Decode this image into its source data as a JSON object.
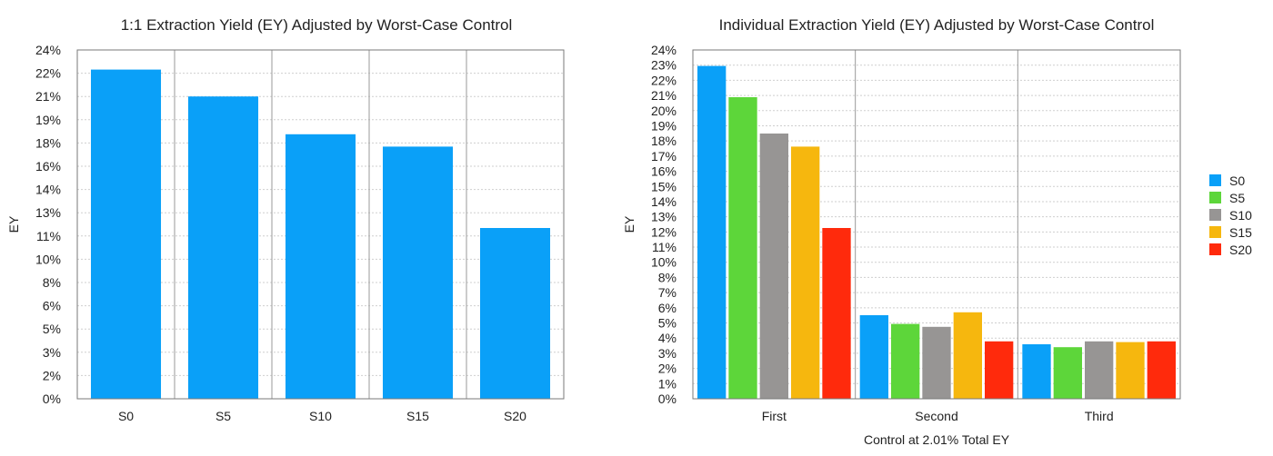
{
  "chart_data": [
    {
      "type": "bar",
      "title": "1:1 Extraction Yield (EY) Adjusted by Worst-Case Control",
      "xlabel": "",
      "ylabel": "EY",
      "ylim": [
        0,
        0.24
      ],
      "yticks": [
        "0%",
        "2%",
        "3%",
        "5%",
        "6%",
        "8%",
        "10%",
        "11%",
        "13%",
        "14%",
        "16%",
        "18%",
        "19%",
        "21%",
        "22%",
        "24%"
      ],
      "categories": [
        "S0",
        "S5",
        "S10",
        "S15",
        "S20"
      ],
      "color": "#0aa0f8",
      "values": [
        0.2265,
        0.208,
        0.182,
        0.1735,
        0.1175
      ],
      "grid": true
    },
    {
      "type": "bar",
      "title": "Individual Extraction Yield (EY) Adjusted by Worst-Case Control",
      "xlabel": "Control at 2.01% Total EY",
      "ylabel": "EY",
      "ylim": [
        0,
        0.24
      ],
      "yticks": [
        "0%",
        "1%",
        "2%",
        "3%",
        "4%",
        "5%",
        "6%",
        "7%",
        "8%",
        "10%",
        "11%",
        "12%",
        "13%",
        "14%",
        "15%",
        "16%",
        "17%",
        "18%",
        "19%",
        "20%",
        "21%",
        "22%",
        "23%",
        "24%"
      ],
      "categories": [
        "First",
        "Second",
        "Third"
      ],
      "series": [
        {
          "name": "S0",
          "color": "#0aa0f8",
          "values": [
            0.229,
            0.0575,
            0.0375
          ]
        },
        {
          "name": "S5",
          "color": "#5dd63a",
          "values": [
            0.2075,
            0.0515,
            0.0355
          ]
        },
        {
          "name": "S10",
          "color": "#979594",
          "values": [
            0.1825,
            0.0495,
            0.0395
          ]
        },
        {
          "name": "S15",
          "color": "#f6b70e",
          "values": [
            0.1735,
            0.0595,
            0.039
          ]
        },
        {
          "name": "S20",
          "color": "#ff2a0c",
          "values": [
            0.1175,
            0.0395,
            0.0395
          ]
        }
      ],
      "grid": true,
      "legend_position": "right"
    }
  ]
}
